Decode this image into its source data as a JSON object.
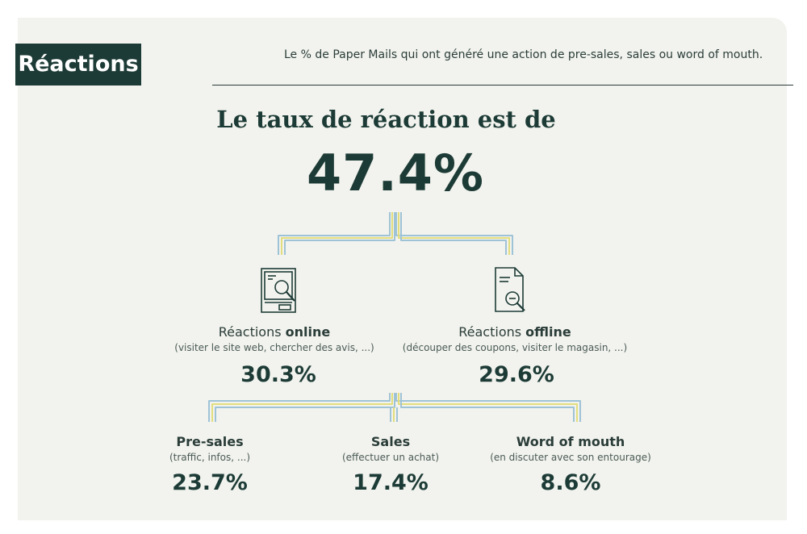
{
  "header": {
    "tag": "Réactions",
    "subtitle": "Le % de Paper Mails qui ont généré une action de pre-sales, sales ou word of mouth."
  },
  "headline": "Le taux de réaction est de",
  "total_rate": "47.4%",
  "reaction_types": [
    {
      "label_prefix": "Réactions ",
      "label_bold": "online",
      "detail": "(visiter le site web, chercher des avis, ...)",
      "value": "30.3%",
      "icon": "website-search-icon"
    },
    {
      "label_prefix": "Réactions ",
      "label_bold": "offline",
      "detail": "(découper des coupons, visiter le magasin, ...)",
      "value": "29.6%",
      "icon": "document-search-icon"
    }
  ],
  "breakdown": [
    {
      "label": "Pre-sales",
      "detail": "(traffic, infos, ...)",
      "value": "23.7%"
    },
    {
      "label": "Sales",
      "detail": "(effectuer un achat)",
      "value": "17.4%"
    },
    {
      "label": "Word of mouth",
      "detail": "(en discuter avec son entourage)",
      "value": "8.6%"
    }
  ],
  "colors": {
    "dark_green": "#1d3b36",
    "background": "#f2f3ee",
    "pipe_blue": "#9fc3d6",
    "pipe_yellow": "#e3dd7e"
  }
}
